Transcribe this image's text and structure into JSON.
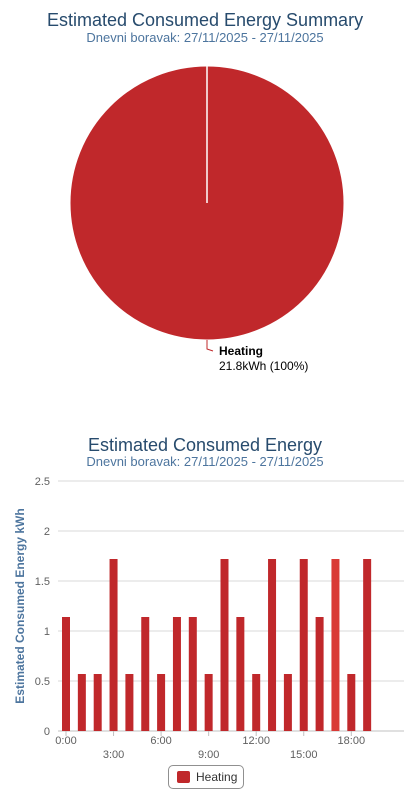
{
  "pie_chart": {
    "title": "Estimated Consumed Energy Summary",
    "subtitle": "Dnevni boravak: 27/11/2025 - 27/11/2025",
    "label_name": "Heating",
    "label_value": "21.8kWh (100%)"
  },
  "bar_chart": {
    "title": "Estimated Consumed Energy",
    "subtitle": "Dnevni boravak: 27/11/2025 - 27/11/2025",
    "ylabel": "Estimated Consumed Energy kWh",
    "legend_label": "Heating"
  },
  "colors": {
    "series": "#c0282b",
    "highlight": "#d93a36"
  },
  "chart_data": [
    {
      "type": "pie",
      "title": "Estimated Consumed Energy Summary",
      "subtitle": "Dnevni boravak: 27/11/2025 - 27/11/2025",
      "slices": [
        {
          "name": "Heating",
          "value": 21.8,
          "percent": 100
        }
      ]
    },
    {
      "type": "bar",
      "title": "Estimated Consumed Energy",
      "subtitle": "Dnevni boravak: 27/11/2025 - 27/11/2025",
      "ylabel": "Estimated Consumed Energy kWh",
      "ylim": [
        0,
        2.5
      ],
      "yticks": [
        "0",
        "0.5",
        "1",
        "1.5",
        "2",
        "2.5"
      ],
      "xticks": [
        "0:00",
        "3:00",
        "6:00",
        "9:00",
        "12:00",
        "15:00",
        "18:00"
      ],
      "x_hours": [
        0,
        1,
        2,
        3,
        4,
        5,
        6,
        7,
        8,
        9,
        10,
        11,
        12,
        13,
        14,
        15,
        16,
        17,
        18,
        19
      ],
      "series": [
        {
          "name": "Heating",
          "values": [
            1.14,
            0.57,
            0.57,
            1.72,
            0.57,
            1.14,
            0.57,
            1.14,
            1.14,
            0.57,
            1.72,
            1.14,
            0.57,
            1.72,
            0.57,
            1.72,
            1.14,
            1.72,
            0.57,
            1.72
          ]
        }
      ],
      "highlight_index": 17,
      "legend": "bottom-center",
      "grid": true
    }
  ]
}
